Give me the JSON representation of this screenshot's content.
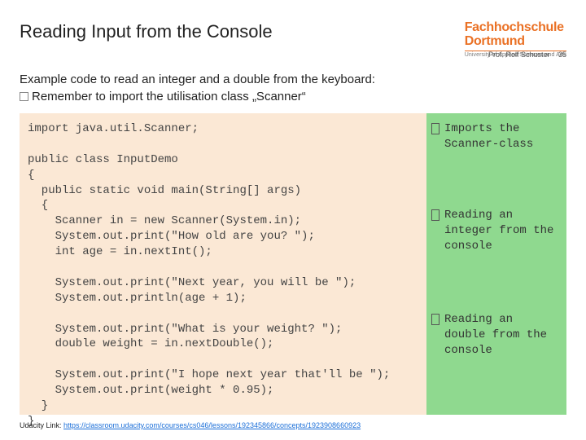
{
  "header": {
    "title": "Reading Input from the Console",
    "logo_main": "Fachhochschule\nDortmund",
    "logo_sub": "University of Applied Sciences and Arts",
    "author": "Prof. Rolf Schuster",
    "page": "35"
  },
  "intro": {
    "line1": "Example code to read an integer and a double from the keyboard:",
    "line2": "Remember to import the utilisation class „Scanner“"
  },
  "code": "import java.util.Scanner;\n\npublic class InputDemo\n{\n  public static void main(String[] args)\n  {\n    Scanner in = new Scanner(System.in);\n    System.out.print(\"How old are you? \");\n    int age = in.nextInt();\n\n    System.out.print(\"Next year, you will be \");\n    System.out.println(age + 1);\n\n    System.out.print(\"What is your weight? \");\n    double weight = in.nextDouble();\n\n    System.out.print(\"I hope next year that'll be \");\n    System.out.print(weight * 0.95);\n  }\n}",
  "annotations": {
    "a1": "Imports the Scanner-class",
    "a2": "Reading an integer from the console",
    "a3": "Reading an double from the console"
  },
  "footer": {
    "label": "Udacity Link: ",
    "url": "https://classroom.udacity.com/courses/cs046/lessons/192345866/concepts/1923908660923"
  },
  "colors": {
    "accent": "#ea7125",
    "code_bg": "#fbe8d5",
    "anno_bg": "#8fd98f"
  }
}
